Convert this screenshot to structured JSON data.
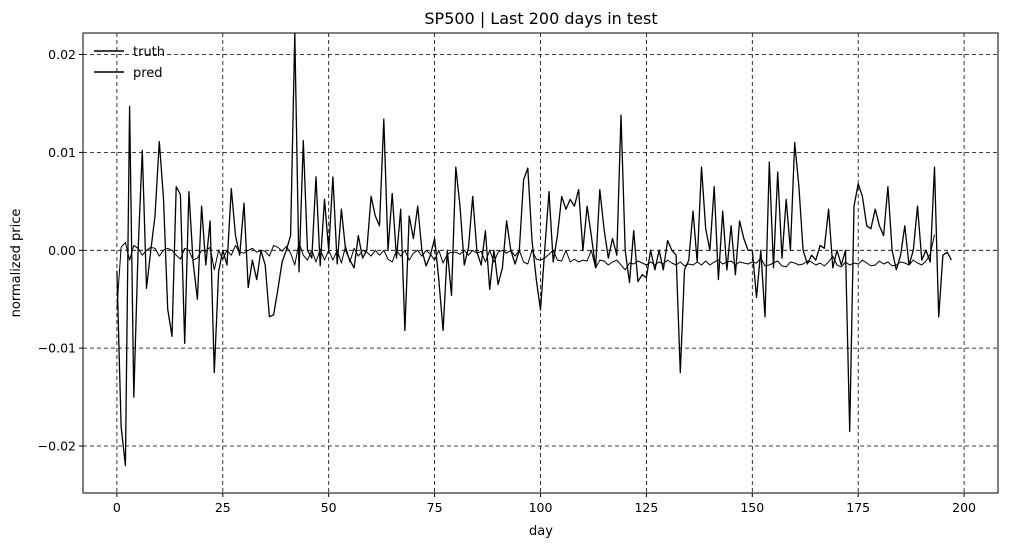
{
  "chart_data": {
    "type": "line",
    "title": "SP500 | Last 200 days in test",
    "xlabel": "day",
    "ylabel": "normalized price",
    "xlim": [
      -8,
      208
    ],
    "ylim": [
      -0.0248,
      0.0222
    ],
    "xticks": [
      0,
      25,
      50,
      75,
      100,
      125,
      150,
      175,
      200
    ],
    "xtick_labels": [
      "0",
      "25",
      "50",
      "75",
      "100",
      "125",
      "150",
      "175",
      "200"
    ],
    "yticks": [
      -0.02,
      -0.01,
      0.0,
      0.01,
      0.02
    ],
    "ytick_labels": [
      "−0.02",
      "−0.01",
      "0.00",
      "0.01",
      "0.02"
    ],
    "grid": true,
    "legend_position": "top-left",
    "series": [
      {
        "name": "truth",
        "color": "#000000",
        "values": [
          -0.0021,
          -0.018,
          -0.022,
          0.0147,
          -0.015,
          0.0,
          0.0102,
          -0.0039,
          0.0,
          0.0035,
          0.0111,
          0.0053,
          -0.006,
          -0.0088,
          0.0065,
          0.0057,
          -0.0095,
          0.006,
          -0.0012,
          -0.005,
          0.0045,
          -0.0015,
          0.003,
          -0.0125,
          -0.0022,
          0.0,
          -0.0015,
          0.0063,
          0.0015,
          -0.0005,
          0.0048,
          -0.0038,
          -0.001,
          -0.003,
          0.0,
          -0.0015,
          -0.0068,
          -0.0066,
          -0.004,
          -0.0012,
          0.0,
          0.0015,
          0.0222,
          -0.0022,
          0.0112,
          0.0,
          -0.0008,
          0.0075,
          -0.0016,
          0.0052,
          0.0,
          0.0075,
          -0.0014,
          0.0042,
          0.0,
          -0.001,
          -0.0018,
          0.0015,
          -0.0008,
          0.0,
          0.0055,
          0.0035,
          0.0025,
          0.0134,
          0.0,
          0.0058,
          -0.0008,
          0.0042,
          -0.0082,
          0.0035,
          0.0012,
          0.0045,
          0.0,
          -0.0016,
          -0.0005,
          0.0012,
          -0.003,
          -0.0082,
          0.0,
          -0.0046,
          0.0085,
          0.0045,
          -0.0015,
          0.0003,
          0.0055,
          -0.0002,
          -0.0015,
          0.002,
          -0.004,
          0.0,
          -0.0035,
          -0.0018,
          0.003,
          0.0,
          -0.0014,
          0.0,
          0.0072,
          0.0084,
          0.001,
          -0.003,
          -0.0061,
          0.0,
          0.006,
          -0.0012,
          0.0015,
          0.0055,
          0.0042,
          0.0052,
          0.0045,
          0.0062,
          0.0,
          0.0045,
          0.0015,
          -0.0018,
          0.0062,
          0.0022,
          -0.0008,
          0.0012,
          -0.0005,
          0.0138,
          0.0,
          -0.0033,
          0.002,
          -0.0032,
          -0.0025,
          -0.0028,
          0.0,
          -0.002,
          0.0,
          -0.002,
          0.001,
          0.0,
          -0.0005,
          -0.0125,
          -0.002,
          -0.001,
          0.004,
          -0.0012,
          0.0085,
          0.0022,
          0.0,
          0.0065,
          -0.003,
          0.004,
          -0.002,
          0.0025,
          -0.0025,
          0.003,
          0.0012,
          0.0,
          0.0,
          -0.0048,
          0.0,
          -0.0068,
          0.009,
          -0.0018,
          0.008,
          -0.0008,
          0.0052,
          0.0,
          0.011,
          0.0065,
          0.0,
          -0.0014,
          -0.0005,
          -0.001,
          0.0005,
          0.0002,
          0.0042,
          -0.0018,
          0.0,
          -0.0015,
          0.0,
          -0.0185,
          0.0045,
          0.0068,
          0.0055,
          0.0025,
          0.0022,
          0.0042,
          0.0025,
          0.0015,
          0.0065,
          0.0,
          -0.002,
          -0.0005,
          0.0025,
          -0.0015,
          0.0,
          0.0045,
          -0.001,
          0.0,
          -0.0012,
          0.0085,
          -0.0068,
          -0.0005,
          -0.0002,
          -0.001
        ]
      },
      {
        "name": "pred",
        "color": "#000000",
        "values": [
          -0.006,
          0.0003,
          0.0008,
          -0.001,
          0.0005,
          0.0002,
          -0.0005,
          0.0,
          0.0003,
          0.0002,
          -0.0006,
          0.0,
          0.0002,
          0.0,
          -0.0005,
          -0.0009,
          0.0002,
          0.0,
          -0.001,
          -0.0008,
          0.0,
          -0.0001,
          0.0003,
          -0.002,
          0.0,
          -0.0009,
          0.0,
          -0.0005,
          0.0005,
          -0.0002,
          -0.0003,
          0.0,
          0.0002,
          -0.0002,
          0.0,
          -0.0001,
          -0.0006,
          0.0005,
          0.0003,
          -0.0001,
          0.0004,
          -0.0003,
          -0.0015,
          0.0008,
          -0.0005,
          -0.001,
          0.0,
          -0.0012,
          0.0001,
          -0.001,
          0.0,
          -0.001,
          0.0,
          -0.0013,
          0.0004,
          -0.0012,
          0.0002,
          -0.0006,
          0.0,
          -0.0002,
          -0.0006,
          0.0,
          -0.0005,
          0.0,
          -0.0009,
          -0.0012,
          0.0,
          -0.0006,
          0.0,
          -0.001,
          -0.0003,
          0.0,
          -0.0006,
          0.0,
          -0.0004,
          -0.001,
          0.0,
          -0.0013,
          -0.0004,
          -0.0002,
          -0.0002,
          -0.0004,
          0.0,
          -0.0005,
          0.0,
          -0.0003,
          -0.0001,
          -0.0012,
          0.0,
          -0.0012,
          -0.0002,
          0.0,
          -0.0003,
          0.0,
          -0.0006,
          0.0,
          -0.0012,
          -0.0014,
          0.0,
          -0.0009,
          -0.001,
          -0.0008,
          -0.0004,
          0.0,
          -0.001,
          -0.0011,
          0.0,
          -0.0012,
          -0.0009,
          -0.0012,
          -0.001,
          -0.0011,
          0.0,
          -0.0018,
          -0.001,
          -0.0011,
          -0.0015,
          -0.0012,
          -0.001,
          -0.0015,
          -0.002,
          -0.0013,
          -0.0014,
          -0.0011,
          -0.0013,
          -0.0015,
          -0.0012,
          -0.0015,
          -0.0012,
          -0.0014,
          -0.001,
          -0.0013,
          -0.0015,
          -0.0012,
          -0.0016,
          -0.0014,
          -0.0015,
          -0.0012,
          -0.0015,
          -0.0011,
          -0.0015,
          -0.0012,
          -0.001,
          -0.0014,
          -0.0012,
          -0.0011,
          -0.0015,
          -0.0012,
          -0.0013,
          -0.0014,
          -0.0012,
          -0.0013,
          -0.0008,
          -0.0016,
          -0.0015,
          -0.0013,
          -0.0011,
          -0.0016,
          -0.0017,
          -0.0012,
          -0.0013,
          -0.0015,
          -0.0014,
          -0.0011,
          -0.0012,
          -0.0015,
          -0.0013,
          -0.0016,
          -0.0012,
          -0.0006,
          -0.0015,
          -0.0017,
          -0.0012,
          -0.0015,
          -0.0013,
          -0.0014,
          -0.001,
          -0.0013,
          -0.0016,
          -0.0015,
          -0.0011,
          -0.0014,
          -0.0012,
          -0.0016,
          -0.0015,
          -0.0012,
          -0.0013,
          -0.0015,
          -0.001,
          -0.0013,
          -0.0015,
          -0.0011,
          -0.0004,
          0.0016
        ]
      }
    ]
  }
}
